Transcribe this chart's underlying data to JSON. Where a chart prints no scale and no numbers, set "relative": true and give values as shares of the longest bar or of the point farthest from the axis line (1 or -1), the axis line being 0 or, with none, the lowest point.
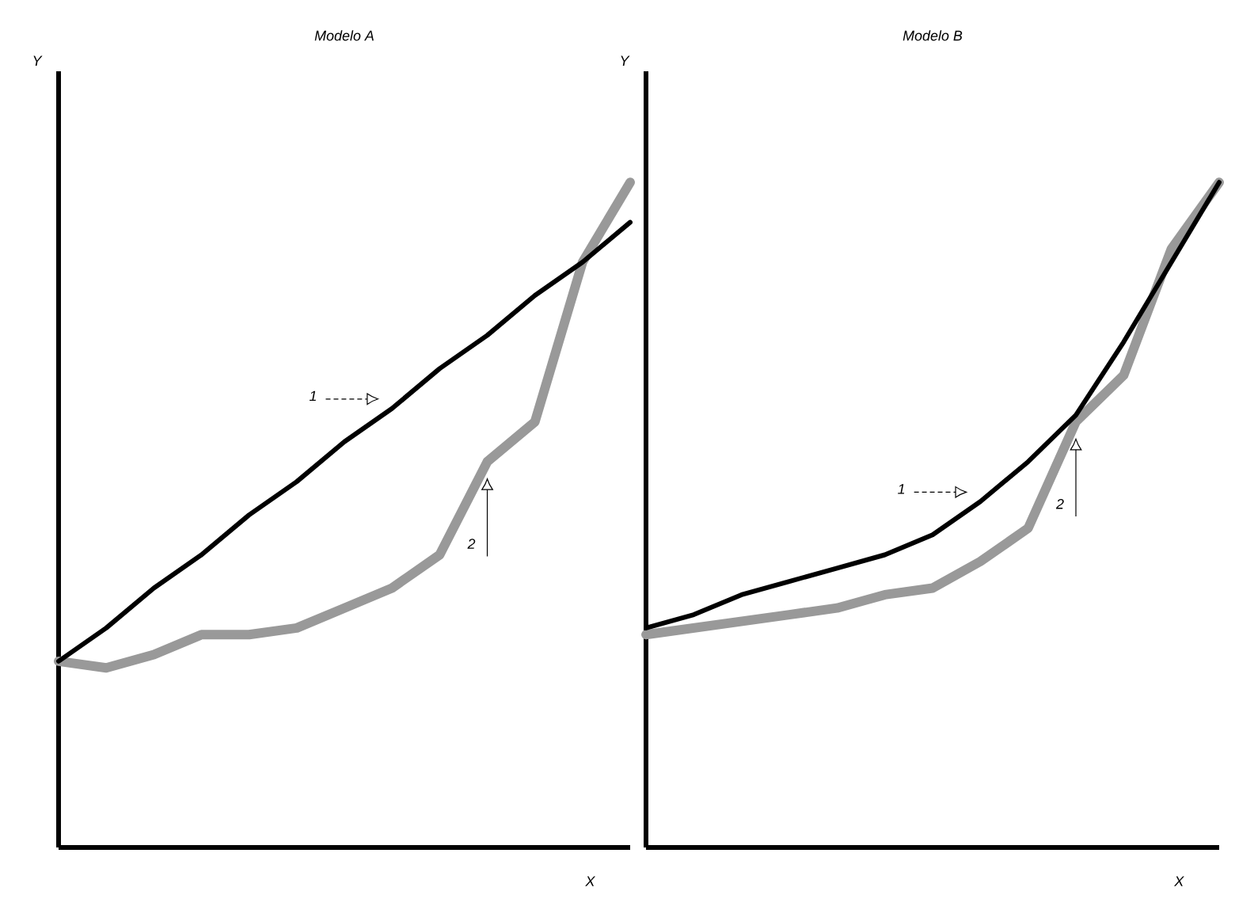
{
  "chart_data": [
    {
      "type": "line",
      "title": "Modelo A",
      "xlabel": "X",
      "ylabel": "Y",
      "relative": true,
      "categories": [
        null,
        null,
        null,
        null,
        null,
        null,
        null,
        null,
        null,
        null,
        null,
        null,
        null
      ],
      "series": [
        {
          "name": "1",
          "color": "#000000",
          "values": [
            0.28,
            0.33,
            0.39,
            0.44,
            0.5,
            0.55,
            0.61,
            0.66,
            0.72,
            0.77,
            0.83,
            0.88,
            0.94
          ]
        },
        {
          "name": "2",
          "color": "#999999",
          "values": [
            0.28,
            0.27,
            0.29,
            0.32,
            0.32,
            0.33,
            0.36,
            0.39,
            0.44,
            0.58,
            0.64,
            0.88,
            1.0
          ]
        }
      ]
    },
    {
      "type": "line",
      "title": "Modelo B",
      "xlabel": "X",
      "ylabel": "Y",
      "relative": true,
      "categories": [
        null,
        null,
        null,
        null,
        null,
        null,
        null,
        null,
        null,
        null,
        null,
        null,
        null
      ],
      "series": [
        {
          "name": "1",
          "color": "#000000",
          "values": [
            0.33,
            0.35,
            0.38,
            0.4,
            0.42,
            0.44,
            0.47,
            0.52,
            0.58,
            0.65,
            0.76,
            0.88,
            1.0
          ]
        },
        {
          "name": "2",
          "color": "#999999",
          "values": [
            0.32,
            0.33,
            0.34,
            0.35,
            0.36,
            0.38,
            0.39,
            0.43,
            0.48,
            0.64,
            0.71,
            0.9,
            1.0
          ]
        }
      ]
    }
  ]
}
